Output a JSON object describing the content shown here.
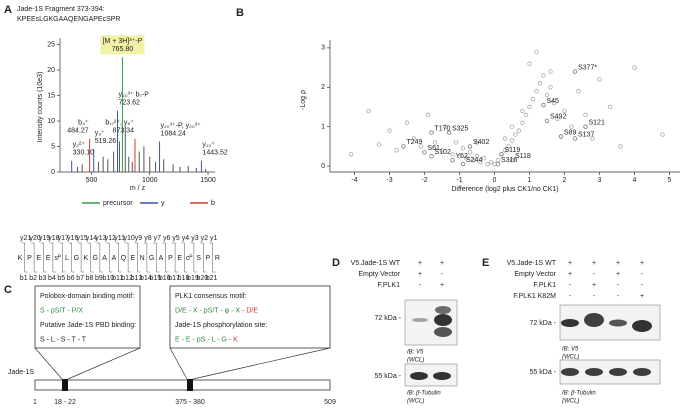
{
  "panel_A": {
    "label": "A",
    "title": "Jade-1S Fragment 373-394:",
    "peptide": "KPEEsLGKGAAQENGAPEcSPR",
    "ladder": {
      "residues": [
        "K",
        "P",
        "E",
        "E",
        "sᴾ",
        "L",
        "G",
        "K",
        "G",
        "A",
        "A",
        "Q",
        "E",
        "N",
        "G",
        "A",
        "P",
        "E",
        "cᴾ",
        "S",
        "P",
        "R"
      ],
      "y_ions": [
        "y21",
        "y20",
        "y19",
        "y18",
        "y17",
        "y16",
        "y15",
        "y14",
        "y13",
        "y12",
        "y11",
        "y10",
        "y9",
        "y8",
        "y7",
        "y6",
        "y5",
        "y4",
        "y3",
        "y2",
        "y1"
      ],
      "b_ions": [
        "b1",
        "b2",
        "b3",
        "b4",
        "b5",
        "b6",
        "b7",
        "b8",
        "b9",
        "b10",
        "b11",
        "b12",
        "b13",
        "b14",
        "b15",
        "b16",
        "b17",
        "b18",
        "b19",
        "b20",
        "b21"
      ]
    }
  },
  "chart_data": [
    {
      "type": "stem",
      "x_label": "m / z",
      "y_label": "Intensity counts (10e3)",
      "xlim": [
        230,
        1560
      ],
      "xticks": [
        500,
        1000,
        1500
      ],
      "ylim": [
        0,
        25.5
      ],
      "yticks": [
        0,
        5,
        10,
        15,
        20,
        25
      ],
      "series": [
        {
          "color": "#555555",
          "x": [
            380,
            420,
            560,
            600,
            640,
            690,
            740,
            790,
            820,
            850,
            910,
            950,
            1000,
            1050,
            1120,
            1200,
            1260,
            1330,
            1400,
            1480
          ],
          "values": [
            1,
            1.5,
            2,
            3,
            2.5,
            4,
            6,
            9,
            3,
            2,
            4,
            5,
            3,
            2,
            2.5,
            1.5,
            1,
            1.2,
            0.8,
            0.6
          ]
        },
        {
          "name": "precursor",
          "color": "#2e9e4a",
          "x": [
            765.8
          ],
          "x_labels": [
            "765.80"
          ],
          "values": [
            22.5
          ],
          "ions": [
            "[M + 3H]³⁺-P"
          ]
        },
        {
          "name": "y",
          "color": "#3a55a4",
          "x": [
            330.1,
            519.26,
            723.62,
            1084.24,
            1443.52
          ],
          "x_labels": [
            "330.10",
            "519.26",
            "723.62",
            "1084.24",
            "1443.52"
          ],
          "values": [
            2.2,
            4.5,
            12,
            6,
            2.2
          ],
          "ions": [
            "y₂²⁺",
            "y₃⁺",
            "y₂₀³⁺ b₇-P",
            "y₂₀³⁺-P, y₂₀³⁺",
            "y₁₃⁺"
          ]
        },
        {
          "name": "b",
          "color": "#d03a2f",
          "x": [
            484.27,
            873.34
          ],
          "x_labels": [
            "484.27",
            "873.34"
          ],
          "values": [
            6.5,
            6.5
          ],
          "ions": [
            "b₄⁺",
            "b₁₇²⁺, y₆⁺"
          ]
        }
      ]
    },
    {
      "type": "scatter",
      "panel_label": "B",
      "x_label": "Difference (log2 plus CK1/no CK1)",
      "y_label": "-Log ρ",
      "xlim": [
        -4.7,
        5.3
      ],
      "xticks": [
        -4,
        -3,
        -2,
        -1,
        0,
        1,
        2,
        3,
        4,
        5
      ],
      "ylim": [
        -0.15,
        3.2
      ],
      "yticks": [
        0,
        1,
        2,
        3
      ],
      "series": [
        {
          "color": "#aaaaaa",
          "x": [
            -4.1,
            -3.3,
            -3.0,
            -2.8,
            -2.5,
            -2.3,
            -2.1,
            -1.9,
            -1.7,
            -1.5,
            -1.4,
            -1.2,
            -1.1,
            -1.0,
            -0.9,
            -0.8,
            -0.7,
            -0.6,
            -0.5,
            -0.4,
            -0.3,
            -0.2,
            -0.1,
            0,
            0.1,
            0.2,
            0.3,
            0.4,
            0.5,
            0.6,
            0.7,
            0.8,
            0.9,
            1.0,
            1.1,
            1.2,
            1.3,
            1.4,
            1.5,
            1.6,
            1.7,
            1.8,
            2.0,
            2.2,
            2.4,
            2.6,
            2.8,
            3.0,
            3.3,
            3.6,
            4.0,
            4.8,
            0.3,
            0.5,
            0.8,
            1.0,
            1.2,
            1.6,
            -3.6,
            -0.5
          ],
          "values": [
            0.3,
            0.55,
            0.9,
            0.4,
            1.1,
            0.7,
            0.5,
            1.3,
            0.6,
            0.4,
            1.0,
            0.3,
            0.6,
            0.25,
            0.45,
            0.2,
            0.35,
            0.15,
            0.25,
            0.1,
            0.2,
            0.05,
            0.1,
            0.05,
            0.15,
            0.3,
            0.4,
            0.5,
            0.65,
            0.8,
            0.9,
            1.1,
            1.3,
            1.5,
            1.7,
            1.9,
            2.1,
            2.3,
            1.8,
            2.0,
            1.6,
            1.2,
            1.4,
            1.0,
            1.9,
            1.3,
            0.7,
            2.2,
            1.5,
            0.5,
            2.5,
            0.8,
            0.7,
            1.0,
            1.4,
            2.6,
            2.9,
            2.4,
            1.4,
            0.6
          ]
        },
        {
          "color": "#777777",
          "x": [
            2.3,
            1.4,
            1.5,
            2.6,
            1.9,
            2.3,
            -1.8,
            -1.3,
            -2.6,
            -2.0,
            -1.8,
            -1.2,
            -0.7,
            -0.9,
            0.1,
            0.2,
            0.5
          ],
          "values": [
            2.4,
            1.55,
            1.15,
            1.0,
            0.75,
            0.7,
            0.85,
            0.85,
            0.5,
            0.35,
            0.25,
            0.15,
            0.5,
            0.05,
            0.05,
            0.3,
            0.15
          ],
          "point_labels": [
            "S377*",
            "S45",
            "S492",
            "S121",
            "S89",
            "S137",
            "T170",
            "S325",
            "T249",
            "S61",
            "S102",
            "Y62",
            "S402",
            "S244",
            "S316",
            "S119",
            "S118"
          ]
        }
      ]
    }
  ],
  "panel_C": {
    "label": "C",
    "boxes": [
      {
        "lines": [
          {
            "kind": "heading",
            "tokens": [
              {
                "text": "Polobox-domain binding motif:",
                "color": "#222222"
              }
            ]
          },
          {
            "kind": "motif",
            "tokens": [
              {
                "text": "S - pS/T - P/X",
                "color": "#2e8b3e"
              }
            ]
          },
          {
            "kind": "heading",
            "tokens": [
              {
                "text": "Putative Jade-1S PBD binding:",
                "color": "#222222"
              }
            ]
          },
          {
            "kind": "motif",
            "tokens": [
              {
                "text": "S - L - S  -  T  -  T",
                "color": "#222222"
              }
            ]
          }
        ]
      },
      {
        "lines": [
          {
            "kind": "heading",
            "tokens": [
              {
                "text": "PLK1 consensus motif:",
                "color": "#222222"
              }
            ]
          },
          {
            "kind": "motif",
            "tokens": [
              {
                "text": "D/E - X - pS/T - φ - X - ",
                "color": "#2e8b3e"
              },
              {
                "text": "D/E",
                "color": "#d03a2f"
              }
            ]
          },
          {
            "kind": "heading",
            "tokens": [
              {
                "text": "Jade-1S phosphorylation site:",
                "color": "#222222"
              }
            ]
          },
          {
            "kind": "motif",
            "tokens": [
              {
                "text": "E - E - pS - L - G - ",
                "color": "#2e8b3e"
              },
              {
                "text": "K",
                "color": "#d03a2f"
              }
            ]
          }
        ]
      }
    ],
    "protein": {
      "name": "Jade-1S",
      "start": 1,
      "end": 509,
      "regions": [
        "18 - 22",
        "375 - 380"
      ]
    }
  },
  "panel_D": {
    "label": "D",
    "rows": [
      {
        "label": "V5.Jade-1S WT",
        "signs": [
          "+",
          "+"
        ]
      },
      {
        "label": "Empty Vector",
        "signs": [
          "+",
          "-"
        ]
      },
      {
        "label": "F.PLK1",
        "signs": [
          "-",
          "+"
        ]
      }
    ],
    "blots": [
      {
        "marker": "72 kDa -",
        "caption": [
          "IB: V5",
          "(WCL)"
        ]
      },
      {
        "marker": "55 kDa -",
        "caption": [
          "IB: β-Tubulin",
          "(WCL)"
        ]
      }
    ]
  },
  "panel_E": {
    "label": "E",
    "rows": [
      {
        "label": "V5.Jade-1S WT",
        "signs": [
          "+",
          "+",
          "+",
          "+"
        ]
      },
      {
        "label": "Empty Vector",
        "signs": [
          "+",
          "-",
          "+",
          "-"
        ]
      },
      {
        "label": "F.PLK1",
        "signs": [
          "-",
          "+",
          "-",
          "-"
        ]
      },
      {
        "label": "F.PLK1 K82M",
        "signs": [
          "-",
          "-",
          "-",
          "+"
        ]
      }
    ],
    "blots": [
      {
        "marker": "72 kDa -",
        "caption": [
          "IB: V5",
          "(WCL)"
        ]
      },
      {
        "marker": "55 kDa -",
        "caption": [
          "IB: β-Tubulin",
          "(WCL)"
        ]
      }
    ]
  }
}
